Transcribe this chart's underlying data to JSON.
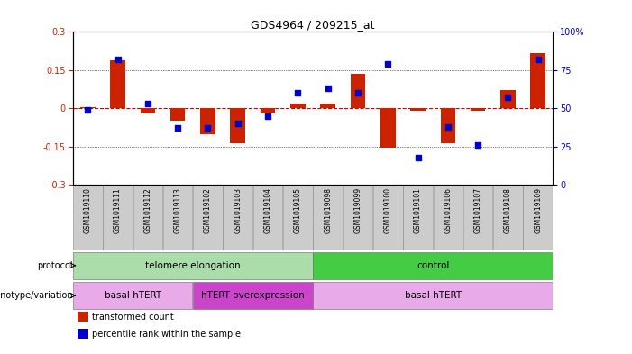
{
  "title": "GDS4964 / 209215_at",
  "samples": [
    "GSM1019110",
    "GSM1019111",
    "GSM1019112",
    "GSM1019113",
    "GSM1019102",
    "GSM1019103",
    "GSM1019104",
    "GSM1019105",
    "GSM1019098",
    "GSM1019099",
    "GSM1019100",
    "GSM1019101",
    "GSM1019106",
    "GSM1019107",
    "GSM1019108",
    "GSM1019109"
  ],
  "bar_values": [
    0.005,
    0.19,
    -0.02,
    -0.05,
    -0.1,
    -0.135,
    -0.02,
    0.02,
    0.02,
    0.135,
    -0.155,
    -0.01,
    -0.135,
    -0.01,
    0.07,
    0.215
  ],
  "dot_values": [
    49,
    82,
    53,
    37,
    37,
    40,
    45,
    60,
    63,
    60,
    79,
    18,
    38,
    26,
    57,
    82
  ],
  "ylim_left": [
    -0.3,
    0.3
  ],
  "ylim_right": [
    0,
    100
  ],
  "yticks_left": [
    -0.3,
    -0.15,
    0,
    0.15,
    0.3
  ],
  "yticks_right": [
    0,
    25,
    50,
    75,
    100
  ],
  "bar_color": "#cc2200",
  "dot_color": "#0000cc",
  "zero_line_color": "#cc0000",
  "grid_color": "black",
  "protocol_labels": [
    {
      "text": "telomere elongation",
      "start": 0,
      "end": 7
    },
    {
      "text": "control",
      "start": 8,
      "end": 15
    }
  ],
  "protocol_colors": {
    "telomere elongation": "#aaddaa",
    "control": "#44cc44"
  },
  "genotype_labels": [
    {
      "text": "basal hTERT",
      "start": 0,
      "end": 3
    },
    {
      "text": "hTERT overexpression",
      "start": 4,
      "end": 7
    },
    {
      "text": "basal hTERT",
      "start": 8,
      "end": 15
    }
  ],
  "genotype_colors": {
    "basal hTERT": "#e8aae8",
    "hTERT overexpression": "#cc44cc"
  },
  "row_label_protocol": "protocol",
  "row_label_genotype": "genotype/variation",
  "legend_items": [
    [
      "transformed count",
      "#cc2200"
    ],
    [
      "percentile rank within the sample",
      "#0000cc"
    ]
  ],
  "bg_color": "#ffffff",
  "tick_label_bg": "#cccccc"
}
